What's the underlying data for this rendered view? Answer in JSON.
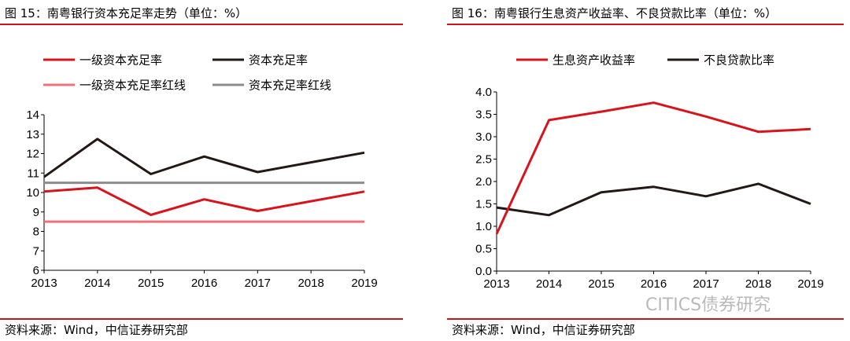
{
  "left": {
    "title": "图 15：南粤银行资本充足率走势（单位：%）",
    "source": "资料来源：Wind，中信证券研究部"
  },
  "right": {
    "title": "图 16：南粤银行生息资产收益率、不良贷款比率（单位：%）",
    "source": "资料来源：Wind，中信证券研究部"
  },
  "watermark": "CITICS债券研究",
  "chart_data": [
    {
      "type": "line",
      "title": "图 15：南粤银行资本充足率走势（单位：%）",
      "x": [
        "2013",
        "2014",
        "2015",
        "2016",
        "2017",
        "2018",
        "2019"
      ],
      "ylim": [
        6,
        14
      ],
      "yticks": [
        "6",
        "7",
        "8",
        "9",
        "10",
        "11",
        "12",
        "13",
        "14"
      ],
      "legend_position": "top-left",
      "series": [
        {
          "name": "一级资本充足率",
          "color": "#d7141c",
          "values": [
            10.05,
            10.25,
            8.85,
            9.65,
            9.05,
            9.55,
            10.05
          ]
        },
        {
          "name": "资本充足率",
          "color": "#231815",
          "values": [
            10.8,
            12.75,
            10.95,
            11.85,
            11.05,
            11.55,
            12.05
          ]
        },
        {
          "name": "一级资本充足率红线",
          "color": "#f0707a",
          "values": [
            8.5,
            8.5,
            8.5,
            8.5,
            8.5,
            8.5,
            8.5
          ]
        },
        {
          "name": "资本充足率红线",
          "color": "#8c8c8c",
          "values": [
            10.5,
            10.5,
            10.5,
            10.5,
            10.5,
            10.5,
            10.5
          ]
        }
      ]
    },
    {
      "type": "line",
      "title": "图 16：南粤银行生息资产收益率、不良贷款比率（单位：%）",
      "x": [
        "2013",
        "2014",
        "2015",
        "2016",
        "2017",
        "2018",
        "2019"
      ],
      "ylim": [
        0,
        4
      ],
      "yticks": [
        "0.0",
        "0.5",
        "1.0",
        "1.5",
        "2.0",
        "2.5",
        "3.0",
        "3.5",
        "4.0"
      ],
      "legend_position": "top-left",
      "series": [
        {
          "name": "生息资产收益率",
          "color": "#d7141c",
          "values": [
            0.83,
            3.37,
            3.56,
            3.76,
            3.45,
            3.11,
            3.17
          ]
        },
        {
          "name": "不良贷款比率",
          "color": "#231815",
          "values": [
            1.42,
            1.25,
            1.76,
            1.88,
            1.67,
            1.95,
            1.5
          ]
        }
      ]
    }
  ]
}
